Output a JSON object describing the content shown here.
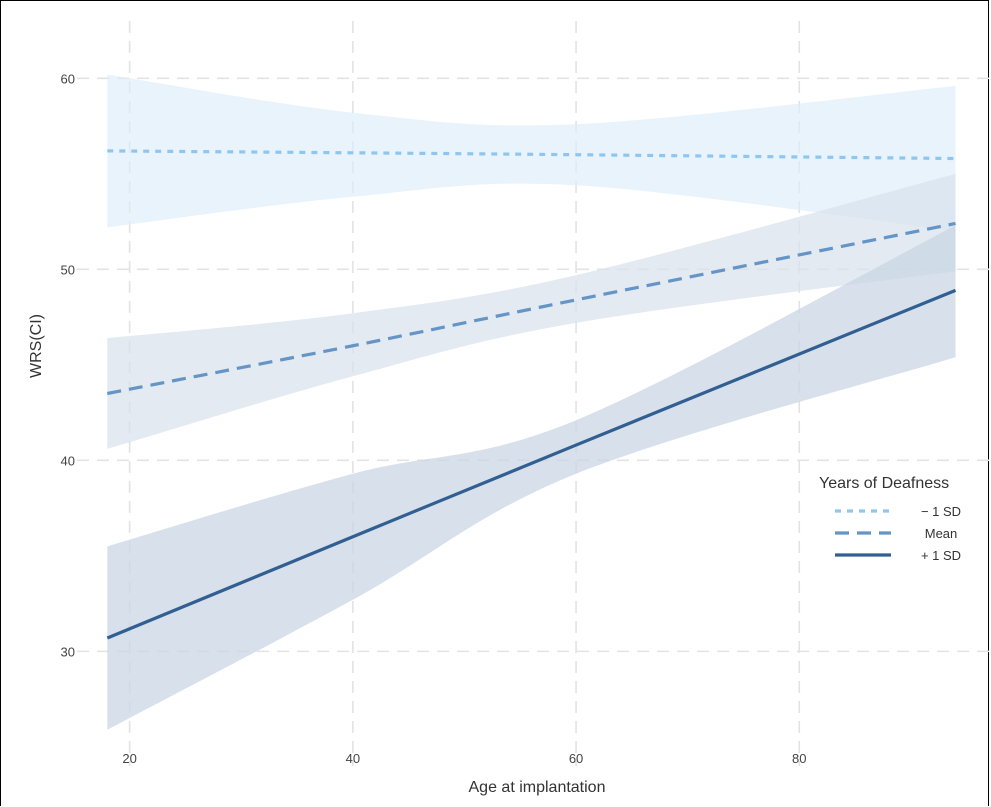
{
  "chart_data": {
    "type": "line",
    "xlabel": "Age at implantation",
    "ylabel": "WRS(CI)",
    "xlim": [
      16,
      97
    ],
    "ylim": [
      24,
      63
    ],
    "x_ticks": [
      20,
      40,
      60,
      80
    ],
    "y_ticks": [
      30,
      40,
      50,
      60
    ],
    "grid": true,
    "legend": {
      "title": "Years of Deafness",
      "placement": "right"
    },
    "colors": {
      "minus_sd": "#8ec6f0",
      "mean": "#6495c6",
      "plus_sd": "#315f92",
      "band_minus_sd": "#dcedfb",
      "band_mean": "#d9e1ec",
      "band_plus_sd": "#c9d6e4",
      "grid": "#e3e3e3"
    },
    "series": [
      {
        "name": "− 1 SD",
        "line_style": "dotted",
        "x": [
          18,
          40,
          60,
          94
        ],
        "y": [
          56.2,
          56.1,
          56.0,
          55.8
        ],
        "lower": [
          52.2,
          53.8,
          54.4,
          52.0
        ],
        "upper": [
          60.2,
          58.2,
          57.6,
          59.6
        ]
      },
      {
        "name": "Mean",
        "line_style": "dashed",
        "x": [
          18,
          40,
          60,
          94
        ],
        "y": [
          43.5,
          46.0,
          48.4,
          52.4
        ],
        "lower": [
          40.6,
          44.4,
          47.2,
          49.9
        ],
        "upper": [
          46.4,
          47.7,
          49.7,
          55.0
        ]
      },
      {
        "name": "+ 1 SD",
        "line_style": "solid",
        "x": [
          18,
          40,
          60,
          94
        ],
        "y": [
          30.7,
          36.0,
          40.8,
          48.9
        ],
        "lower": [
          25.9,
          32.7,
          39.3,
          45.4
        ],
        "upper": [
          35.5,
          39.3,
          42.1,
          52.3
        ]
      }
    ]
  }
}
